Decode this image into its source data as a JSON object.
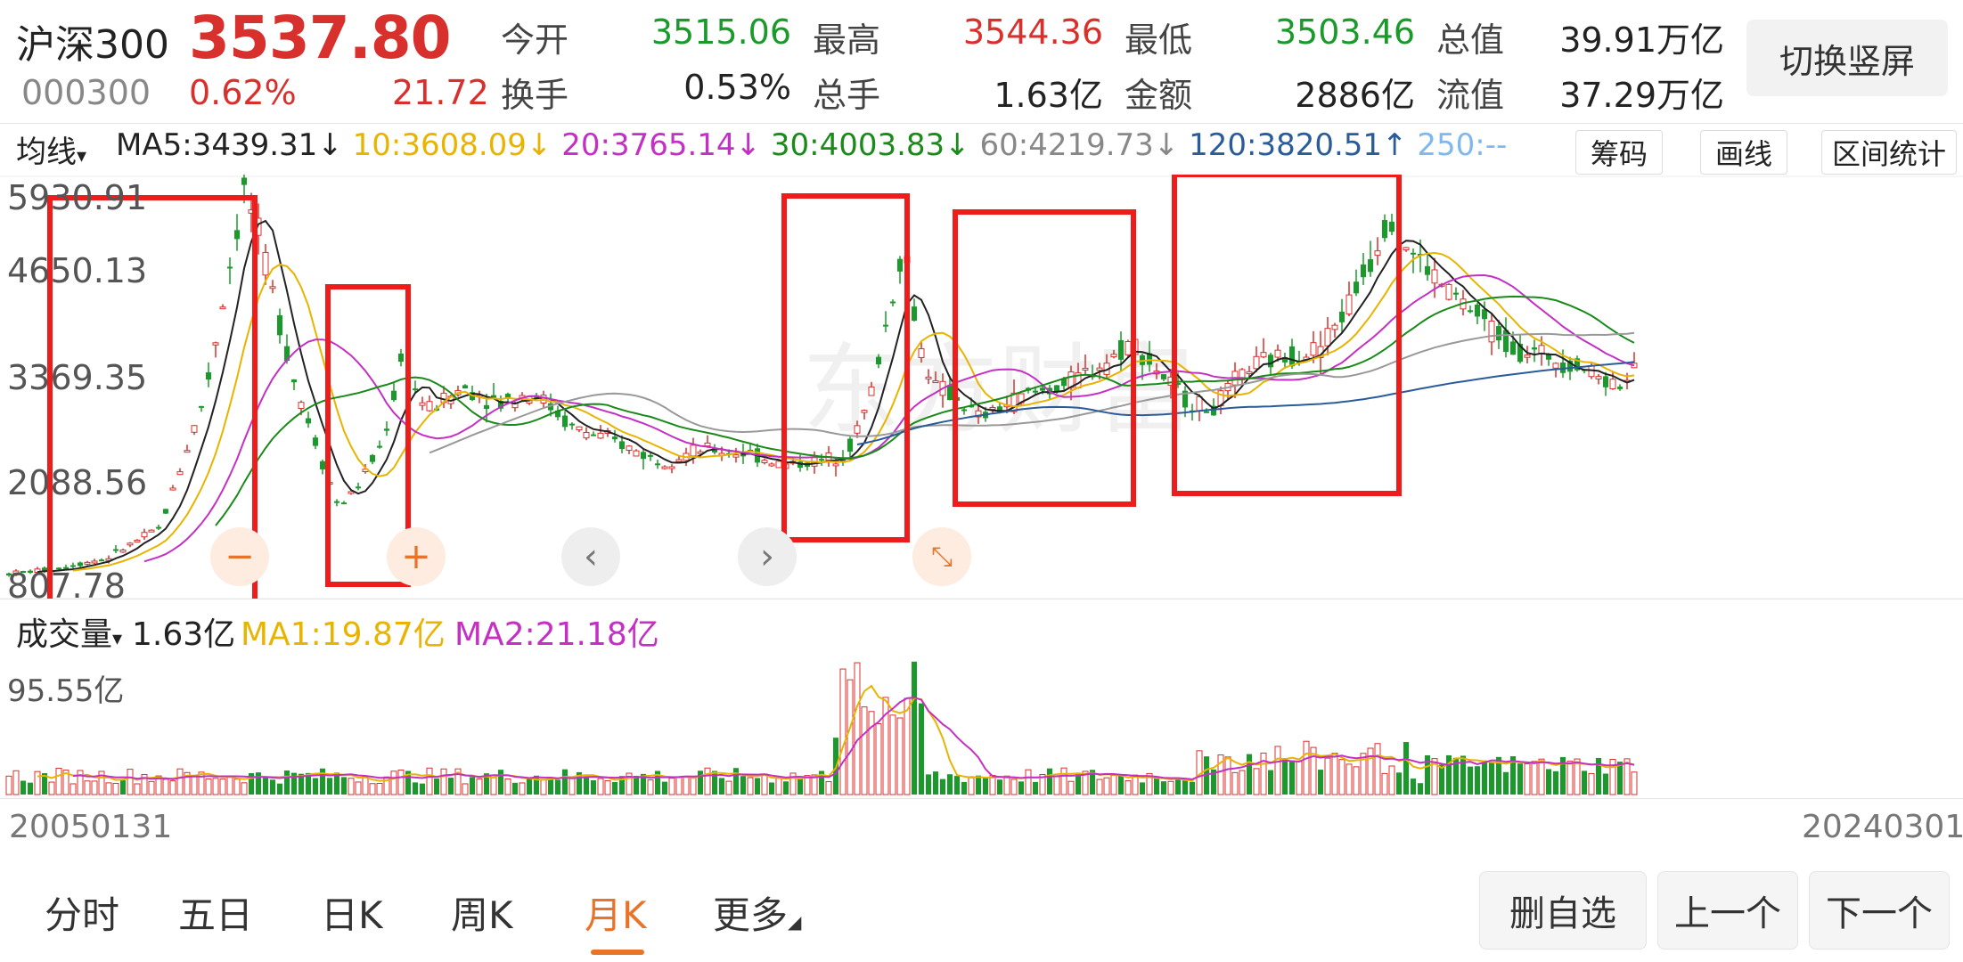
{
  "header": {
    "name": "沪深300",
    "price": "3537.80",
    "code": "000300",
    "change_pct": "0.62%",
    "change_val": "21.72",
    "stats": [
      {
        "label": "今开",
        "value": "3515.06",
        "color": "green"
      },
      {
        "label": "最高",
        "value": "3544.36",
        "color": "red"
      },
      {
        "label": "最低",
        "value": "3503.46",
        "color": "green"
      },
      {
        "label": "总值",
        "value": "39.91万亿",
        "color": "dark"
      },
      {
        "label": "换手",
        "value": "0.53%",
        "color": "dark"
      },
      {
        "label": "总手",
        "value": "1.63亿",
        "color": "dark"
      },
      {
        "label": "金额",
        "value": "2886亿",
        "color": "dark"
      },
      {
        "label": "流值",
        "value": "37.29万亿",
        "color": "dark"
      }
    ],
    "toggle_label": "切换竖屏"
  },
  "ma_bar": {
    "selector": "均线",
    "items": [
      {
        "text": "MA5:3439.31↓",
        "color": "#222222"
      },
      {
        "text": "10:3608.09↓",
        "color": "#e8b400"
      },
      {
        "text": "20:3765.14↓",
        "color": "#c430c4"
      },
      {
        "text": "30:4003.83↓",
        "color": "#1a8a1a"
      },
      {
        "text": "60:4219.73↓",
        "color": "#888888"
      },
      {
        "text": "120:3820.51↑",
        "color": "#2a5c9a"
      },
      {
        "text": "250:--",
        "color": "#7fb8ee"
      }
    ],
    "buttons": [
      "筹码",
      "画线",
      "区间统计"
    ]
  },
  "price_chart": {
    "y_labels": [
      "5930.91",
      "4650.13",
      "3369.35",
      "2088.56",
      "807.78"
    ]
  },
  "volume": {
    "selector": "成交量",
    "value": "1.63亿",
    "ma1": "MA1:19.87亿",
    "ma2": "MA2:21.18亿",
    "y_max_label": "95.55亿",
    "ma1_color": "#e8b400",
    "ma2_color": "#c430c4"
  },
  "dates": {
    "start": "20050131",
    "end": "20240301"
  },
  "tabs": [
    {
      "label": "分时",
      "active": false
    },
    {
      "label": "五日",
      "active": false
    },
    {
      "label": "日K",
      "active": false
    },
    {
      "label": "周K",
      "active": false
    },
    {
      "label": "月K",
      "active": true
    },
    {
      "label": "更多",
      "active": false
    }
  ],
  "bottom_buttons": [
    "删自选",
    "上一个",
    "下一个"
  ],
  "colors": {
    "up": "#d8302c",
    "down": "#1a9a2a",
    "accent": "#e8742a"
  },
  "chart_controls": [
    "zoom-out-icon",
    "zoom-in-icon",
    "chevron-left-icon",
    "chevron-right-icon",
    "collapse-icon"
  ]
}
